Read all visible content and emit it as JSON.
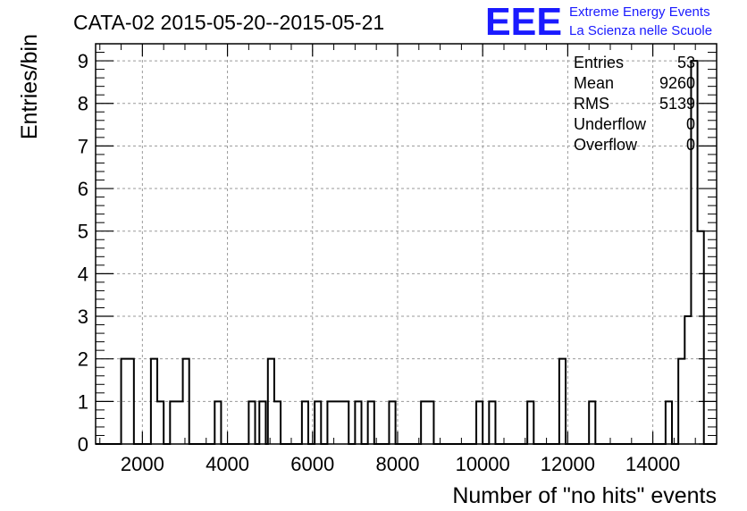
{
  "chart_data": {
    "type": "bar",
    "histogram": true,
    "title": "CATA-02 2015-05-20--2015-05-21",
    "xlabel": "Number of \"no hits\" events",
    "ylabel": "Entries/bin",
    "xlim": [
      900,
      15500
    ],
    "ylim": [
      0,
      9.4
    ],
    "bin_width": 150,
    "xticks": [
      2000,
      4000,
      6000,
      8000,
      10000,
      12000,
      14000
    ],
    "yticks": [
      0,
      1,
      2,
      3,
      4,
      5,
      6,
      7,
      8,
      9
    ],
    "grid": true,
    "bins": [
      {
        "x0": 1500,
        "x1": 1800,
        "count": 2
      },
      {
        "x0": 2200,
        "x1": 2350,
        "count": 2
      },
      {
        "x0": 2350,
        "x1": 2500,
        "count": 1
      },
      {
        "x0": 2650,
        "x1": 2950,
        "count": 1
      },
      {
        "x0": 2950,
        "x1": 3100,
        "count": 2
      },
      {
        "x0": 3700,
        "x1": 3850,
        "count": 1
      },
      {
        "x0": 4500,
        "x1": 4650,
        "count": 1
      },
      {
        "x0": 4750,
        "x1": 4900,
        "count": 1
      },
      {
        "x0": 4950,
        "x1": 5100,
        "count": 2
      },
      {
        "x0": 5100,
        "x1": 5250,
        "count": 1
      },
      {
        "x0": 5750,
        "x1": 5900,
        "count": 1
      },
      {
        "x0": 6050,
        "x1": 6200,
        "count": 1
      },
      {
        "x0": 6350,
        "x1": 6850,
        "count": 1
      },
      {
        "x0": 7000,
        "x1": 7150,
        "count": 1
      },
      {
        "x0": 7300,
        "x1": 7450,
        "count": 1
      },
      {
        "x0": 7800,
        "x1": 7950,
        "count": 1
      },
      {
        "x0": 8550,
        "x1": 8850,
        "count": 1
      },
      {
        "x0": 9850,
        "x1": 10000,
        "count": 1
      },
      {
        "x0": 10150,
        "x1": 10300,
        "count": 1
      },
      {
        "x0": 11050,
        "x1": 11200,
        "count": 1
      },
      {
        "x0": 11800,
        "x1": 11950,
        "count": 2
      },
      {
        "x0": 12500,
        "x1": 12650,
        "count": 1
      },
      {
        "x0": 14300,
        "x1": 14450,
        "count": 1
      },
      {
        "x0": 14600,
        "x1": 14750,
        "count": 2
      },
      {
        "x0": 14750,
        "x1": 14900,
        "count": 3
      },
      {
        "x0": 14900,
        "x1": 15050,
        "count": 9
      },
      {
        "x0": 15050,
        "x1": 15200,
        "count": 5
      }
    ],
    "stats": {
      "labels": [
        "Entries",
        "Mean",
        "RMS",
        "Underflow",
        "Overflow"
      ],
      "values": [
        "53",
        "9260",
        "5139",
        "0",
        "0"
      ],
      "placement": "top-right"
    }
  },
  "logo": {
    "mark": "EEE",
    "line1": "Extreme Energy Events",
    "line2": "La Scienza nelle Scuole",
    "color": "#1a1aff"
  }
}
